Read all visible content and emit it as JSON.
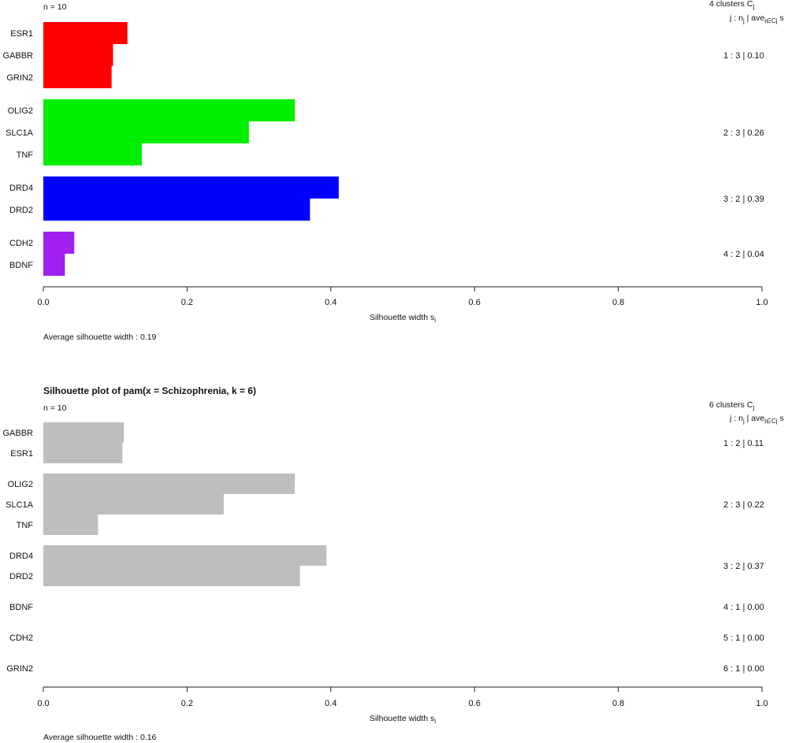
{
  "chart_data": [
    {
      "type": "bar",
      "orientation": "horizontal",
      "title": "",
      "n_label": "n = 10",
      "clusters_header": "4  clusters  C",
      "clusters_header_sub": "j",
      "column_header": "j :  n",
      "column_header_sub1": "j",
      "column_header_mid": " | ave",
      "column_header_sub2": "i∈Cj",
      "column_header_tail": "  s",
      "xlabel": "Silhouette width s",
      "xlabel_sub": "i",
      "xlim": [
        0,
        1
      ],
      "xticks": [
        "0.0",
        "0.2",
        "0.4",
        "0.6",
        "0.8",
        "1.0"
      ],
      "grid": false,
      "average_text": "Average silhouette width :  0.19",
      "clusters": [
        {
          "summary": "1 :  3  |  0.10",
          "color": "#ff0000",
          "members": [
            {
              "label": "ESR1",
              "value": 0.117
            },
            {
              "label": "GABBR",
              "value": 0.097
            },
            {
              "label": "GRIN2",
              "value": 0.095
            }
          ]
        },
        {
          "summary": "2 :  3  |  0.26",
          "color": "#00ee00",
          "members": [
            {
              "label": "OLIG2",
              "value": 0.35
            },
            {
              "label": "SLC1A",
              "value": 0.286
            },
            {
              "label": "TNF",
              "value": 0.137
            }
          ]
        },
        {
          "summary": "3 :  2  |  0.39",
          "color": "#0000ff",
          "members": [
            {
              "label": "DRD4",
              "value": 0.411
            },
            {
              "label": "DRD2",
              "value": 0.371
            }
          ]
        },
        {
          "summary": "4 :  2  |  0.04",
          "color": "#a020f0",
          "members": [
            {
              "label": "CDH2",
              "value": 0.043
            },
            {
              "label": "BDNF",
              "value": 0.03
            }
          ]
        }
      ]
    },
    {
      "type": "bar",
      "orientation": "horizontal",
      "title": "Silhouette plot of pam(x = Schizophrenia, k = 6)",
      "n_label": "n = 10",
      "clusters_header": "6  clusters  C",
      "clusters_header_sub": "j",
      "column_header": "j :  n",
      "column_header_sub1": "j",
      "column_header_mid": " | ave",
      "column_header_sub2": "i∈Cj",
      "column_header_tail": "  s",
      "xlabel": "Silhouette width s",
      "xlabel_sub": "i",
      "xlim": [
        0,
        1
      ],
      "xticks": [
        "0.0",
        "0.2",
        "0.4",
        "0.6",
        "0.8",
        "1.0"
      ],
      "grid": false,
      "average_text": "Average silhouette width :  0.16",
      "clusters": [
        {
          "summary": "1 :  2  |  0.11",
          "color": "#bebebe",
          "members": [
            {
              "label": "GABBR",
              "value": 0.112
            },
            {
              "label": "ESR1",
              "value": 0.11
            }
          ]
        },
        {
          "summary": "2 :  3  |  0.22",
          "color": "#bebebe",
          "members": [
            {
              "label": "OLIG2",
              "value": 0.35
            },
            {
              "label": "SLC1A",
              "value": 0.251
            },
            {
              "label": "TNF",
              "value": 0.076
            }
          ]
        },
        {
          "summary": "3 :  2  |  0.37",
          "color": "#bebebe",
          "members": [
            {
              "label": "DRD4",
              "value": 0.394
            },
            {
              "label": "DRD2",
              "value": 0.357
            }
          ]
        },
        {
          "summary": "4 :  1  |  0.00",
          "color": "#bebebe",
          "members": [
            {
              "label": "BDNF",
              "value": 0.0
            }
          ]
        },
        {
          "summary": "5 :  1  |  0.00",
          "color": "#bebebe",
          "members": [
            {
              "label": "CDH2",
              "value": 0.0
            }
          ]
        },
        {
          "summary": "6 :  1  |  0.00",
          "color": "#bebebe",
          "members": [
            {
              "label": "GRIN2",
              "value": 0.0
            }
          ]
        }
      ]
    }
  ]
}
